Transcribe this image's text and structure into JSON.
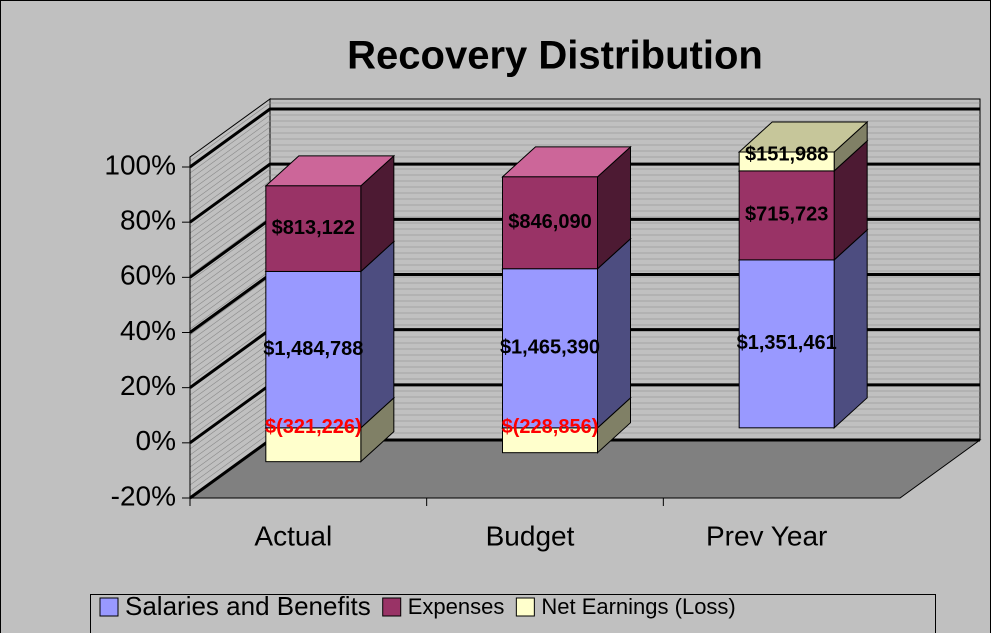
{
  "chart_data": {
    "type": "bar3d",
    "stacking": "percent",
    "title": "Recovery Distribution",
    "categories": [
      "Actual",
      "Budget",
      "Prev Year"
    ],
    "series": [
      {
        "name": "Salaries and Benefits",
        "color": "#9999ff",
        "side_color": "#4d4d80",
        "top_color": "#ccccff",
        "values": [
          1484788,
          1465390,
          1351461
        ],
        "value_labels": [
          "$1,484,788",
          "$1,465,390",
          "$1,351,461"
        ]
      },
      {
        "name": "Expenses",
        "color": "#993366",
        "side_color": "#4d1a33",
        "top_color": "#cc6699",
        "values": [
          813122,
          846090,
          715723
        ],
        "value_labels": [
          "$813,122",
          "$846,090",
          "$715,723"
        ]
      },
      {
        "name": "Net Earnings (Loss)",
        "color": "#ffffcc",
        "side_color": "#808066",
        "top_color": "#c6c69a",
        "values": [
          -321226,
          -228856,
          151988
        ],
        "value_labels": [
          "$(321,226)",
          "$(228,856)",
          "$151,988"
        ]
      }
    ],
    "label_color": "#000000",
    "negative_label_color": "#ff0000",
    "ylim": [
      -20,
      100
    ],
    "yticks": [
      {
        "value": -20,
        "label": "-20%"
      },
      {
        "value": 0,
        "label": "0%"
      },
      {
        "value": 20,
        "label": "20%"
      },
      {
        "value": 40,
        "label": "40%"
      },
      {
        "value": 60,
        "label": "60%"
      },
      {
        "value": 80,
        "label": "80%"
      },
      {
        "value": 100,
        "label": "100%"
      }
    ],
    "grid": true,
    "legend": "bottom"
  }
}
